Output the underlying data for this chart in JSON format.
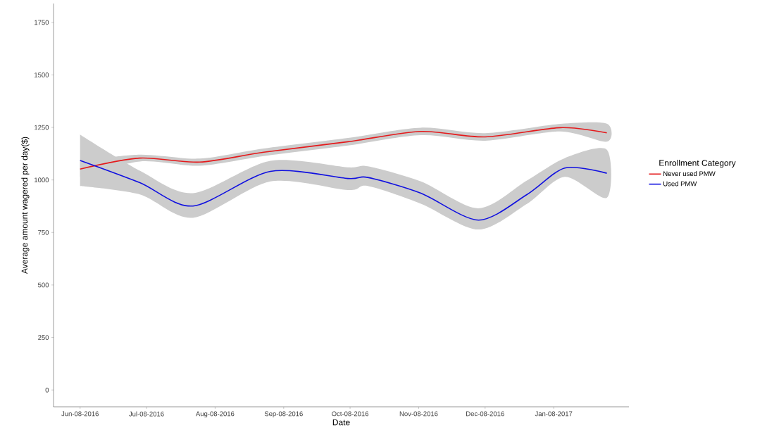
{
  "chart_data": {
    "type": "line",
    "xlabel": "Date",
    "ylabel": "Average amount wagered per day($)",
    "legend_title": "Enrollment Category",
    "legend": "right",
    "grid": false,
    "marker": "none",
    "line_style": "solid",
    "xlim": [
      "2016-05-27",
      "2017-02-11"
    ],
    "ylim": [
      -80,
      1840
    ],
    "xticks": [
      {
        "value": "2016-06-08",
        "label": "Jun-08-2016"
      },
      {
        "value": "2016-07-08",
        "label": "Jul-08-2016"
      },
      {
        "value": "2016-08-08",
        "label": "Aug-08-2016"
      },
      {
        "value": "2016-09-08",
        "label": "Sep-08-2016"
      },
      {
        "value": "2016-10-08",
        "label": "Oct-08-2016"
      },
      {
        "value": "2016-11-08",
        "label": "Nov-08-2016"
      },
      {
        "value": "2016-12-08",
        "label": "Dec-08-2016"
      },
      {
        "value": "2017-01-08",
        "label": "Jan-08-2017"
      }
    ],
    "yticks": [
      0,
      250,
      500,
      750,
      1000,
      1250,
      1500,
      1750
    ],
    "series": [
      {
        "name": "Never used PMW",
        "color": "#e41a1c",
        "x": [
          "2016-06-08",
          "2016-07-05",
          "2016-08-01",
          "2016-08-30",
          "2016-10-07",
          "2016-11-09",
          "2016-12-08",
          "2017-01-11",
          "2017-02-01"
        ],
        "values": [
          1052,
          1104,
          1085,
          1132,
          1182,
          1231,
          1205,
          1249,
          1224
        ],
        "lower": [
          1015,
          1088,
          1068,
          1114,
          1164,
          1213,
          1187,
          1231,
          1182
        ],
        "upper": [
          1090,
          1120,
          1102,
          1150,
          1200,
          1249,
          1223,
          1267,
          1268
        ]
      },
      {
        "name": "Used PMW",
        "color": "#1010e0",
        "x": [
          "2016-06-08",
          "2016-07-05",
          "2016-07-29",
          "2016-09-02",
          "2016-10-07",
          "2016-10-16",
          "2016-11-09",
          "2016-12-05",
          "2016-12-27",
          "2017-01-13",
          "2017-02-01"
        ],
        "values": [
          1093,
          987,
          876,
          1041,
          1007,
          1012,
          937,
          809,
          931,
          1057,
          1032
        ],
        "lower": [
          971,
          931,
          820,
          993,
          952,
          971,
          887,
          764,
          887,
          1015,
          915
        ],
        "upper": [
          1216,
          1044,
          937,
          1091,
          1060,
          1065,
          993,
          865,
          998,
          1104,
          1144
        ]
      }
    ]
  }
}
